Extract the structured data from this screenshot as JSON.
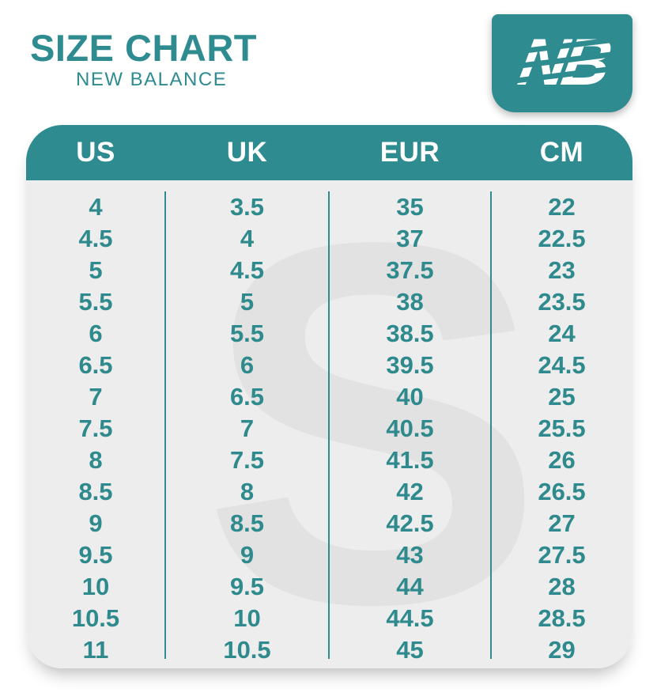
{
  "header": {
    "title": "SIZE CHART",
    "subtitle": "NEW BALANCE",
    "logo_text": "NB"
  },
  "colors": {
    "accent_teal": "#2e8b8f",
    "number_text": "#2f8a8d",
    "table_body_bg": "#ededed",
    "watermark_gray": "#e2e2e2",
    "header_text": "#ffffff",
    "page_bg": "#ffffff"
  },
  "watermark_letter": "S",
  "chart_data": {
    "type": "table",
    "title": "SIZE CHART",
    "subtitle": "NEW BALANCE",
    "columns": [
      "US",
      "UK",
      "EUR",
      "CM"
    ],
    "rows": [
      [
        "4",
        "3.5",
        "35",
        "22"
      ],
      [
        "4.5",
        "4",
        "37",
        "22.5"
      ],
      [
        "5",
        "4.5",
        "37.5",
        "23"
      ],
      [
        "5.5",
        "5",
        "38",
        "23.5"
      ],
      [
        "6",
        "5.5",
        "38.5",
        "24"
      ],
      [
        "6.5",
        "6",
        "39.5",
        "24.5"
      ],
      [
        "7",
        "6.5",
        "40",
        "25"
      ],
      [
        "7.5",
        "7",
        "40.5",
        "25.5"
      ],
      [
        "8",
        "7.5",
        "41.5",
        "26"
      ],
      [
        "8.5",
        "8",
        "42",
        "26.5"
      ],
      [
        "9",
        "8.5",
        "42.5",
        "27"
      ],
      [
        "9.5",
        "9",
        "43",
        "27.5"
      ],
      [
        "10",
        "9.5",
        "44",
        "28"
      ],
      [
        "10.5",
        "10",
        "44.5",
        "28.5"
      ],
      [
        "11",
        "10.5",
        "45",
        "29"
      ]
    ]
  }
}
